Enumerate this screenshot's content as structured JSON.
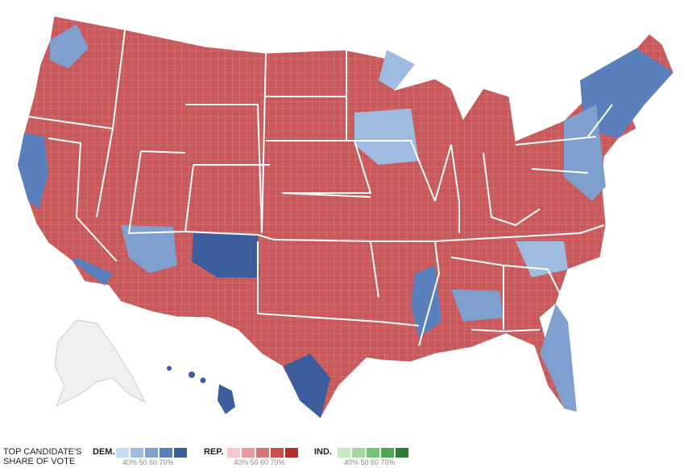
{
  "legend": {
    "title_line1": "TOP CANDIDATE'S",
    "title_line2": "SHARE OF VOTE",
    "groups": [
      {
        "label": "DEM.",
        "colors": [
          "#c6dbef",
          "#9ebcdf",
          "#7f9fcf",
          "#5a7fbd",
          "#3b5d9e"
        ],
        "ticks": "40% 50    60 70%"
      },
      {
        "label": "REP.",
        "colors": [
          "#f6c7c8",
          "#e8999b",
          "#d97374",
          "#c94f50",
          "#b52e2e"
        ],
        "ticks": "40% 50    60 70%"
      },
      {
        "label": "IND.",
        "colors": [
          "#c7e9c0",
          "#a1d99b",
          "#74c476",
          "#4fa54f",
          "#2e7d32"
        ],
        "ticks": "40% 50    60 70%"
      }
    ]
  },
  "map": {
    "land_color": "#c8585a",
    "border_color": "#ffffff",
    "alaska_color": "#f0f0f0",
    "alaska_border": "#cccccc"
  }
}
